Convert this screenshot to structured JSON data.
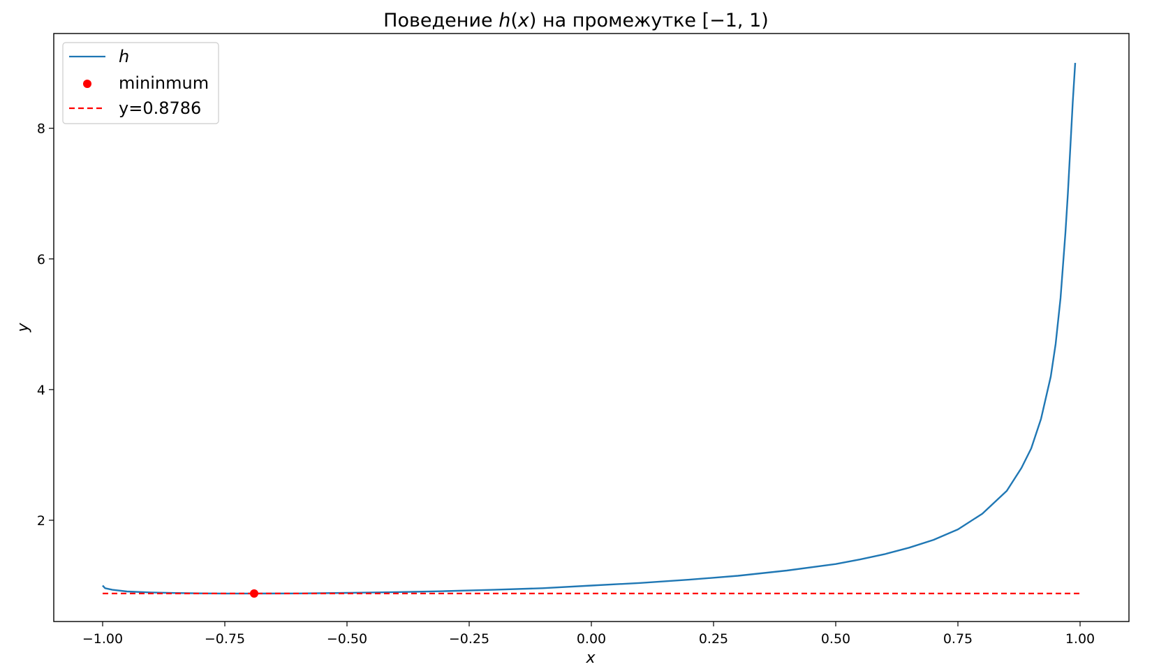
{
  "chart_data": {
    "type": "line",
    "title_parts": {
      "pre": "Поведение ",
      "func": "h",
      "open": "(",
      "arg": "x",
      "close": ")",
      "post": " на промежутке [−1, 1)"
    },
    "xlabel": "x",
    "ylabel": "y",
    "xlim": [
      -1.1,
      1.1
    ],
    "ylim": [
      0.45,
      9.45
    ],
    "xticks": [
      -1.0,
      -0.75,
      -0.5,
      -0.25,
      0.0,
      0.25,
      0.5,
      0.75,
      1.0
    ],
    "xtick_labels": [
      "−1.00",
      "−0.75",
      "−0.50",
      "−0.25",
      "0.00",
      "0.25",
      "0.50",
      "0.75",
      "1.00"
    ],
    "yticks": [
      2,
      4,
      6,
      8
    ],
    "ytick_labels": [
      "2",
      "4",
      "6",
      "8"
    ],
    "grid": false,
    "legend_position": "top-left",
    "series": [
      {
        "name": "h",
        "kind": "line",
        "color": "#1f77b4",
        "x": [
          -1.0,
          -0.995,
          -0.98,
          -0.95,
          -0.9,
          -0.85,
          -0.8,
          -0.75,
          -0.69,
          -0.6,
          -0.5,
          -0.4,
          -0.3,
          -0.2,
          -0.1,
          0.0,
          0.1,
          0.2,
          0.3,
          0.4,
          0.5,
          0.55,
          0.6,
          0.65,
          0.7,
          0.75,
          0.8,
          0.85,
          0.88,
          0.9,
          0.92,
          0.94,
          0.95,
          0.96,
          0.97,
          0.975,
          0.98,
          0.985,
          0.99
        ],
        "y": [
          1.0,
          0.96,
          0.935,
          0.91,
          0.895,
          0.886,
          0.881,
          0.879,
          0.8786,
          0.88,
          0.888,
          0.9,
          0.915,
          0.935,
          0.96,
          1.0,
          1.04,
          1.09,
          1.15,
          1.23,
          1.33,
          1.4,
          1.48,
          1.58,
          1.7,
          1.86,
          2.1,
          2.45,
          2.8,
          3.1,
          3.55,
          4.2,
          4.7,
          5.4,
          6.4,
          7.0,
          7.7,
          8.4,
          9.0
        ]
      },
      {
        "name": "mininmum",
        "kind": "scatter",
        "color": "#ff0000",
        "x": [
          -0.69
        ],
        "y": [
          0.8786
        ]
      },
      {
        "name": "y=0.8786",
        "kind": "hline",
        "color": "#ff0000",
        "x": [
          -1.0,
          1.0
        ],
        "y": [
          0.8786,
          0.8786
        ]
      }
    ]
  }
}
